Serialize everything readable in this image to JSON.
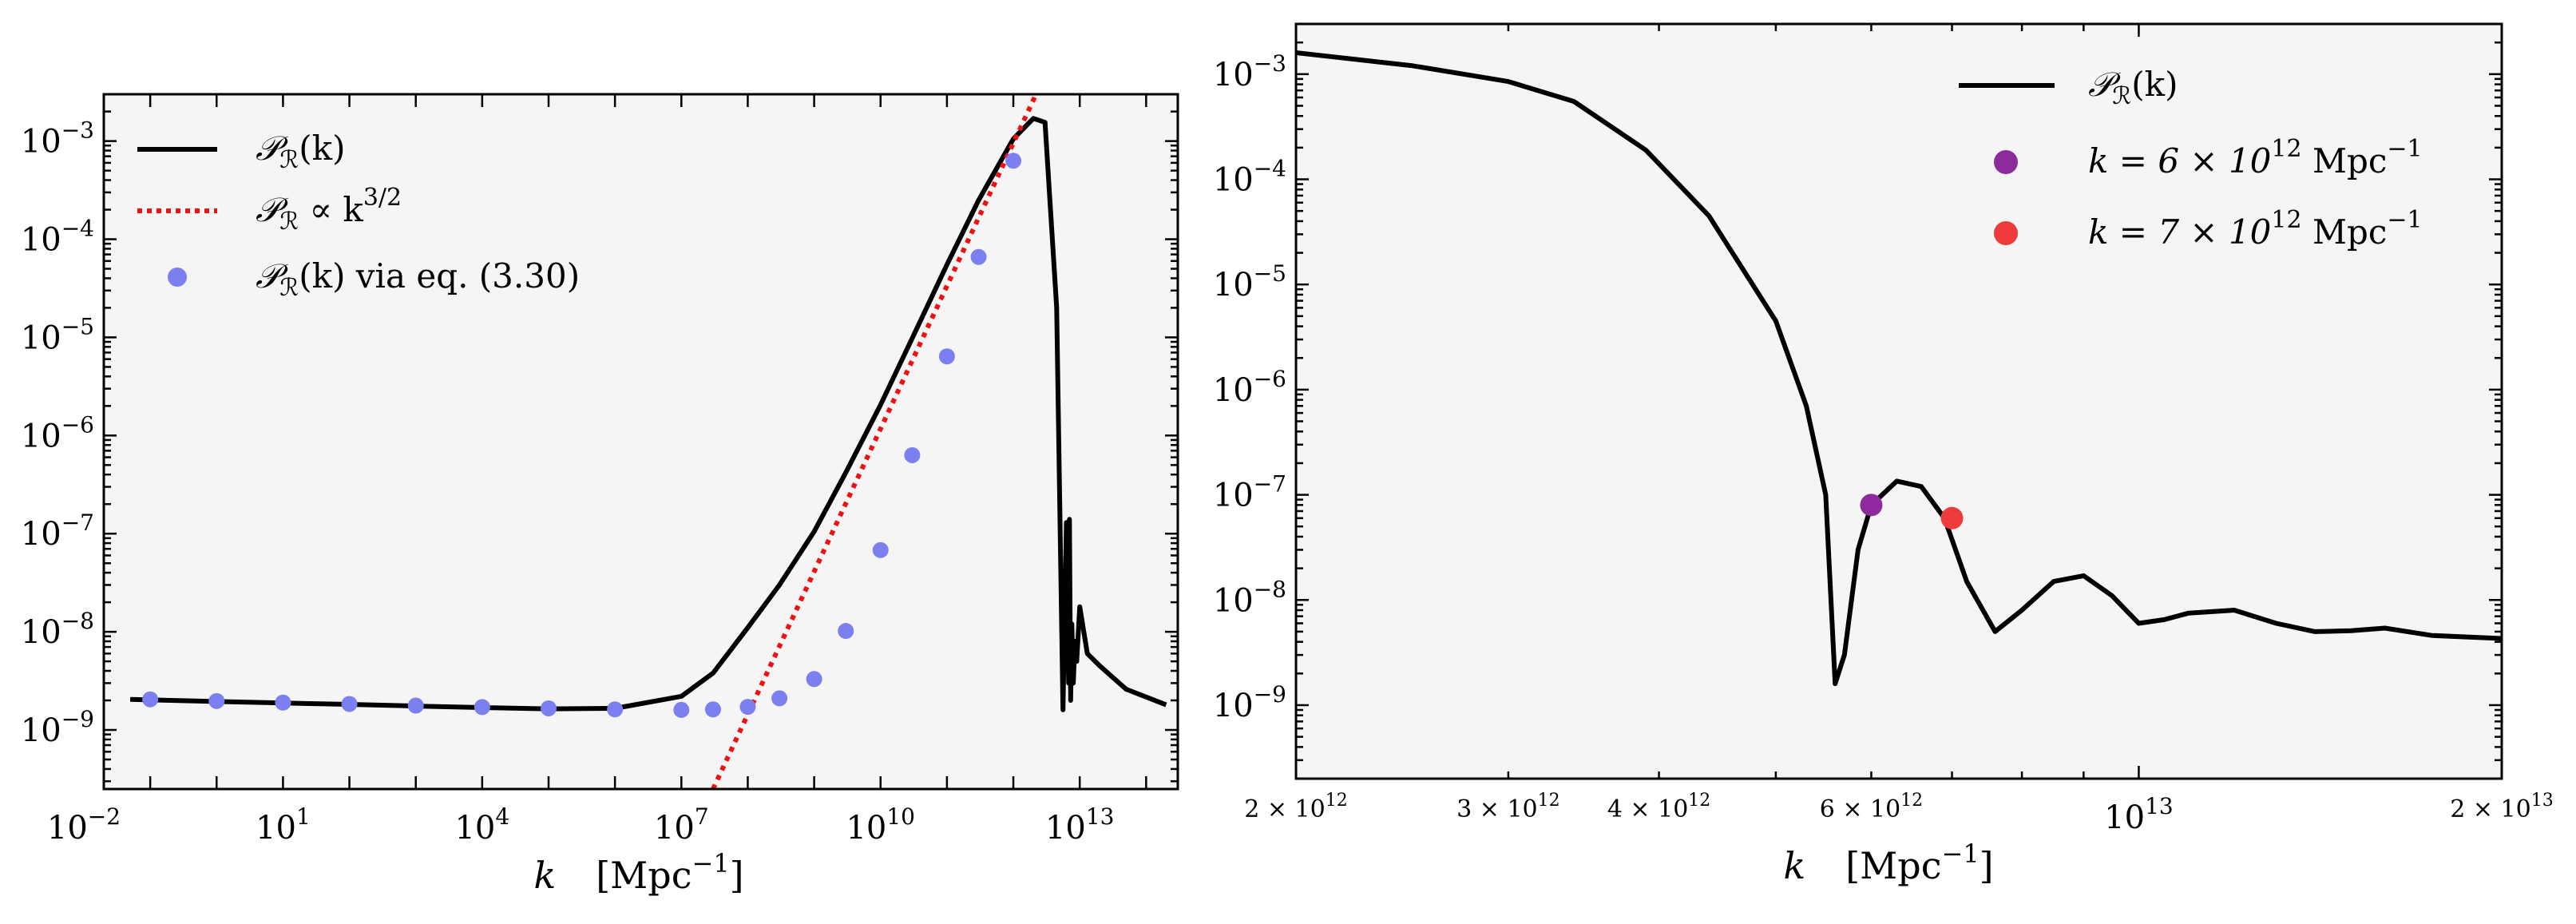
{
  "chart_data": [
    {
      "type": "line",
      "x_scale": "log",
      "y_scale": "log",
      "xlim": [
        0.02,
        300000000000000.0
      ],
      "ylim": [
        2.5e-10,
        0.003
      ],
      "xlabel": "k    [Mpc⁻¹]",
      "ylabel": "",
      "grid": false,
      "legend_position": "top-left",
      "x_ticks": [
        {
          "value": 0.01,
          "base": "10",
          "exp": "−2"
        },
        {
          "value": 10,
          "base": "10",
          "exp": "1"
        },
        {
          "value": 10000.0,
          "base": "10",
          "exp": "4"
        },
        {
          "value": 10000000.0,
          "base": "10",
          "exp": "7"
        },
        {
          "value": 10000000000.0,
          "base": "10",
          "exp": "10"
        },
        {
          "value": 10000000000000.0,
          "base": "10",
          "exp": "13"
        }
      ],
      "y_ticks": [
        {
          "value": 1e-09,
          "base": "10",
          "exp": "−9"
        },
        {
          "value": 1e-08,
          "base": "10",
          "exp": "−8"
        },
        {
          "value": 1e-07,
          "base": "10",
          "exp": "−7"
        },
        {
          "value": 1e-06,
          "base": "10",
          "exp": "−6"
        },
        {
          "value": 1e-05,
          "base": "10",
          "exp": "−5"
        },
        {
          "value": 0.0001,
          "base": "10",
          "exp": "−4"
        },
        {
          "value": 0.001,
          "base": "10",
          "exp": "−3"
        }
      ],
      "series": [
        {
          "name": "𝒫ℛ(k)",
          "style": "solid",
          "color": "#000000",
          "x": [
            0.05,
            1,
            10,
            100,
            1000,
            10000.0,
            100000.0,
            1000000.0,
            10000000.0,
            30000000.0,
            100000000.0,
            300000000.0,
            1000000000.0,
            3000000000.0,
            10000000000.0,
            30000000000.0,
            100000000000.0,
            300000000000.0,
            1000000000000.0,
            2000000000000.0,
            3000000000000.0,
            4500000000000.0,
            5600000000000.0,
            6300000000000.0,
            6800000000000.0,
            7000000000000.0,
            7300000000000.0,
            7600000000000.0,
            8000000000000.0,
            8500000000000.0,
            9000000000000.0,
            10000000000000.0,
            13000000000000.0,
            20000000000000.0,
            50000000000000.0,
            200000000000000.0
          ],
          "y": [
            2.05e-09,
            1.95e-09,
            1.88e-09,
            1.82e-09,
            1.75e-09,
            1.69e-09,
            1.64e-09,
            1.66e-09,
            2.2e-09,
            3.8e-09,
            1.1e-08,
            3e-08,
            1.05e-07,
            4.2e-07,
            2.05e-06,
            9.8e-06,
            5.5e-05,
            0.00025,
            0.00105,
            0.0017,
            0.00155,
            2e-05,
            1.6e-09,
            1.3e-07,
            3e-09,
            1.4e-07,
            2e-09,
            1.2e-08,
            3e-09,
            8e-09,
            5e-09,
            1.8e-08,
            6e-09,
            4.5e-09,
            2.6e-09,
            1.8e-09
          ]
        },
        {
          "name": "𝒫ℛ ∝ k^3/2",
          "style": "dotted",
          "color": "#ee1111",
          "x": [
            30000000.0,
            2200000000000.0
          ],
          "y": [
            2.5e-10,
            0.003
          ]
        },
        {
          "name": "𝒫ℛ(k) via eq. (3.30)",
          "style": "markers",
          "color": "#7b7ff0",
          "x": [
            0.1,
            1,
            10,
            100,
            1000,
            10000.0,
            100000.0,
            1000000.0,
            10000000.0,
            30000000.0,
            100000000.0,
            300000000.0,
            1000000000.0,
            3000000000.0,
            10000000000.0,
            30000000000.0,
            100000000000.0,
            300000000000.0,
            1000000000000.0
          ],
          "y": [
            2.05e-09,
            1.97e-09,
            1.9e-09,
            1.84e-09,
            1.77e-09,
            1.71e-09,
            1.66e-09,
            1.62e-09,
            1.6e-09,
            1.62e-09,
            1.72e-09,
            2.1e-09,
            3.3e-09,
            1.02e-08,
            6.8e-08,
            6.3e-07,
            6.4e-06,
            6.6e-05,
            0.00063
          ]
        }
      ]
    },
    {
      "type": "line",
      "x_scale": "log",
      "y_scale": "log",
      "xlim": [
        2000000000000.0,
        20000000000000.0
      ],
      "ylim": [
        2e-10,
        0.003
      ],
      "xlabel": "k    [Mpc⁻¹]",
      "ylabel": "",
      "grid": false,
      "legend_position": "top-right",
      "x_ticks": [
        {
          "value": 2000000000000.0,
          "pre": "2 × ",
          "base": "10",
          "exp": "12"
        },
        {
          "value": 3000000000000.0,
          "pre": "3 × ",
          "base": "10",
          "exp": "12"
        },
        {
          "value": 4000000000000.0,
          "pre": "4 × ",
          "base": "10",
          "exp": "12"
        },
        {
          "value": 6000000000000.0,
          "pre": "6 × ",
          "base": "10",
          "exp": "12"
        },
        {
          "value": 10000000000000.0,
          "pre": "",
          "base": "10",
          "exp": "13",
          "major": true
        },
        {
          "value": 20000000000000.0,
          "pre": "2 × ",
          "base": "10",
          "exp": "13"
        }
      ],
      "y_ticks": [
        {
          "value": 1e-09,
          "base": "10",
          "exp": "−9"
        },
        {
          "value": 1e-08,
          "base": "10",
          "exp": "−8"
        },
        {
          "value": 1e-07,
          "base": "10",
          "exp": "−7"
        },
        {
          "value": 1e-06,
          "base": "10",
          "exp": "−6"
        },
        {
          "value": 1e-05,
          "base": "10",
          "exp": "−5"
        },
        {
          "value": 0.0001,
          "base": "10",
          "exp": "−4"
        },
        {
          "value": 0.001,
          "base": "10",
          "exp": "−3"
        }
      ],
      "series": [
        {
          "name": "𝒫ℛ(k)",
          "style": "solid",
          "color": "#000000",
          "x": [
            2000000000000.0,
            2500000000000.0,
            3000000000000.0,
            3400000000000.0,
            3900000000000.0,
            4400000000000.0,
            5000000000000.0,
            5300000000000.0,
            5500000000000.0,
            5600000000000.0,
            5700000000000.0,
            5850000000000.0,
            6000000000000.0,
            6300000000000.0,
            6600000000000.0,
            6900000000000.0,
            7200000000000.0,
            7600000000000.0,
            8000000000000.0,
            8500000000000.0,
            9000000000000.0,
            9500000000000.0,
            10000000000000.0,
            10500000000000.0,
            11000000000000.0,
            12000000000000.0,
            13000000000000.0,
            14000000000000.0,
            15000000000000.0,
            16000000000000.0,
            17500000000000.0,
            20000000000000.0
          ],
          "y": [
            0.0016,
            0.0012,
            0.00085,
            0.00055,
            0.00019,
            4.5e-05,
            4.5e-06,
            7e-07,
            1e-07,
            1.6e-09,
            3e-09,
            3e-08,
            8e-08,
            1.35e-07,
            1.2e-07,
            6e-08,
            1.5e-08,
            5e-09,
            8e-09,
            1.5e-08,
            1.7e-08,
            1.1e-08,
            6e-09,
            6.5e-09,
            7.5e-09,
            8e-09,
            6e-09,
            5e-09,
            5.1e-09,
            5.4e-09,
            4.6e-09,
            4.3e-09
          ]
        },
        {
          "name": "k = 6 × 10¹² Mpc⁻¹",
          "style": "marker",
          "color": "#8e2b9c",
          "x": [
            6000000000000.0
          ],
          "y": [
            8e-08
          ]
        },
        {
          "name": "k = 7 × 10¹² Mpc⁻¹",
          "style": "marker",
          "color": "#ee3b3b",
          "x": [
            7000000000000.0
          ],
          "y": [
            6e-08
          ]
        }
      ]
    }
  ],
  "legend_left": [
    {
      "main": "𝒫",
      "sub": "ℛ",
      "rest": "(k)"
    },
    {
      "main": "𝒫",
      "sub": "ℛ",
      "rest": " ∝ k",
      "sup": "3/2"
    },
    {
      "main": "𝒫",
      "sub": "ℛ",
      "rest": "(k) via eq. (3.30)"
    }
  ],
  "legend_right": [
    {
      "main": "𝒫",
      "sub": "ℛ",
      "rest": "(k)"
    },
    {
      "main": "k = 6 × 10",
      "sup": "12",
      "rest2": " Mpc",
      "sup2": "−1"
    },
    {
      "main": "k = 7 × 10",
      "sup": "12",
      "rest2": " Mpc",
      "sup2": "−1"
    }
  ],
  "xlabel_left": {
    "k": "k",
    "unit": "[Mpc",
    "exp": "−1",
    "close": "]"
  },
  "xlabel_right": {
    "k": "k",
    "unit": "[Mpc",
    "exp": "−1",
    "close": "]"
  }
}
